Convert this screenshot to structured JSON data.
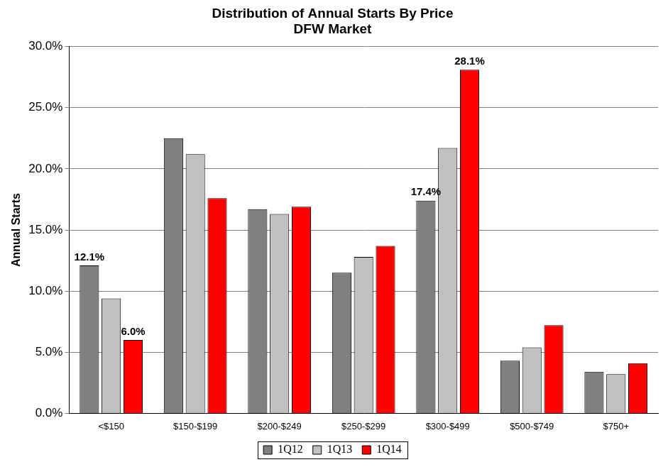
{
  "chart_data": {
    "type": "bar",
    "title": "Distribution of Annual Starts By Price",
    "subtitle": "DFW Market",
    "y_label": "Annual Starts",
    "categories": [
      "<$150",
      "$150-$199",
      "$200-$249",
      "$250-$299",
      "$300-$499",
      "$500-$749",
      "$750+"
    ],
    "series": [
      {
        "name": "1Q12",
        "color": "#808080",
        "values": [
          12.1,
          22.5,
          16.7,
          11.5,
          17.4,
          4.3,
          3.4
        ],
        "value_labels": [
          "12.1%",
          null,
          null,
          null,
          "17.4%",
          null,
          null
        ]
      },
      {
        "name": "1Q13",
        "color": "#c0c0c0",
        "values": [
          9.4,
          21.2,
          16.3,
          12.8,
          21.7,
          5.4,
          3.2
        ],
        "value_labels": [
          null,
          null,
          null,
          null,
          null,
          null,
          null
        ]
      },
      {
        "name": "1Q14",
        "color": "#ff0000",
        "values": [
          6.0,
          17.6,
          16.9,
          13.7,
          28.1,
          7.2,
          4.1
        ],
        "value_labels": [
          "6.0%",
          null,
          null,
          null,
          "28.1%",
          null,
          null
        ]
      }
    ],
    "ylim": [
      0,
      30
    ],
    "yticks": [
      {
        "value": 0,
        "label": "0.0%"
      },
      {
        "value": 5,
        "label": "5.0%"
      },
      {
        "value": 10,
        "label": "10.0%"
      },
      {
        "value": 15,
        "label": "15.0%"
      },
      {
        "value": 20,
        "label": "20.0%"
      },
      {
        "value": 25,
        "label": "25.0%"
      },
      {
        "value": 30,
        "label": "30.0%"
      }
    ],
    "grid": true,
    "legend": "bottom"
  }
}
